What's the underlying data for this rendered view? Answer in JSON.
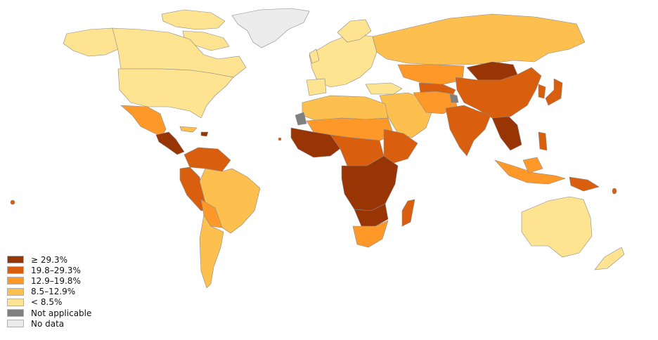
{
  "legend": {
    "items": [
      {
        "label": "≥ 29.3%",
        "color": "#993404"
      },
      {
        "label": "19.8–29.3%",
        "color": "#d95f0e"
      },
      {
        "label": "12.9–19.8%",
        "color": "#fe9929"
      },
      {
        "label": "8.5–12.9%",
        "color": "#fdc04e"
      },
      {
        "label": "< 8.5%",
        "color": "#fee391"
      },
      {
        "label": "Not applicable",
        "color": "#808080"
      },
      {
        "label": "No data",
        "color": "#ececec"
      }
    ]
  }
}
